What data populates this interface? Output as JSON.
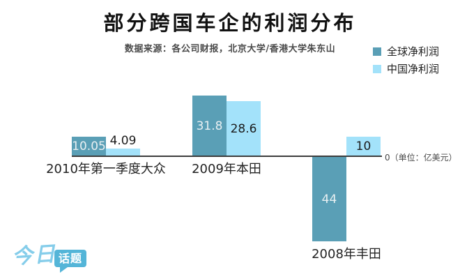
{
  "header": {
    "title": "部分跨国车企的利润分布",
    "subtitle": "数据来源：各公司财报，北京大学/香港大学朱东山"
  },
  "chart_data": {
    "type": "bar",
    "title": "部分跨国车企的利润分布",
    "subtitle": "数据来源：各公司财报，北京大学/香港大学朱东山",
    "unit": "亿美元",
    "zero_axis_label": "0（单位：亿美元）",
    "baseline_value": 0,
    "grid": false,
    "legend_position": "top-right",
    "categories": [
      "2010年第一季度大众",
      "2009年本田",
      "2008年丰田"
    ],
    "series": [
      {
        "name": "全球净利润",
        "color": "#5a9fb6",
        "label_color": "#e9f0f2",
        "values": [
          10.05,
          31.8,
          -44
        ],
        "bar_labels": [
          "10.05",
          "31.8",
          "44"
        ]
      },
      {
        "name": "中国净利润",
        "color": "#a3e2fa",
        "label_color": "#1b1b1b",
        "values": [
          4.09,
          28.6,
          10
        ],
        "bar_labels": [
          "4.09",
          "28.6",
          "10"
        ]
      }
    ]
  },
  "logo": {
    "script_text": "今日",
    "badge_text": "话题"
  },
  "colors": {
    "axis_line": "#3d3d3d",
    "logo_script": "#85cdea",
    "logo_badge_bg": "#54b5d8"
  }
}
